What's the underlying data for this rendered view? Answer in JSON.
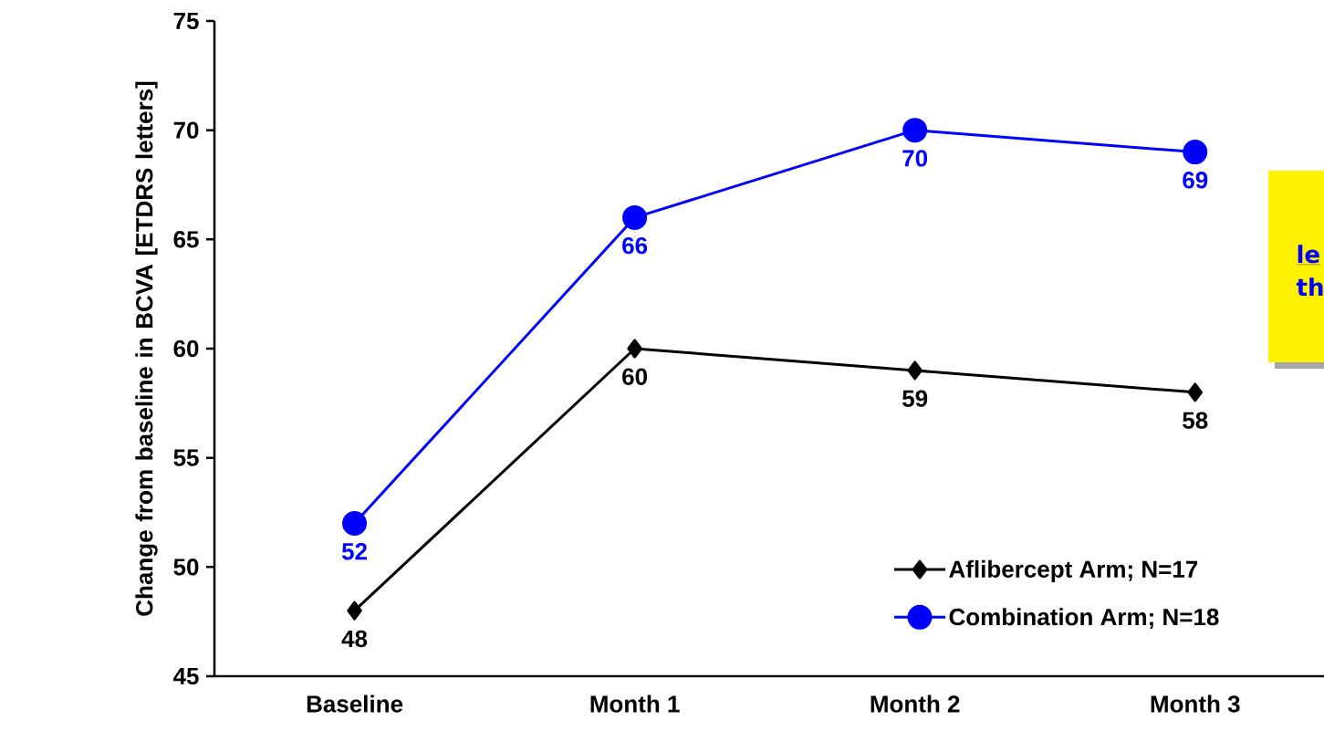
{
  "chart_data": {
    "type": "line",
    "ylabel": "Change from baseline in BCVA [ETDRS letters]",
    "categories": [
      "Baseline",
      "Month 1",
      "Month 2",
      "Month 3"
    ],
    "series": [
      {
        "name": "Aflibercept Arm; N=17",
        "color": "#000000",
        "marker": "diamond",
        "values": [
          48,
          60,
          59,
          58
        ]
      },
      {
        "name": "Combination Arm; N=18",
        "color": "#0000ff",
        "marker": "circle",
        "values": [
          52,
          66,
          70,
          69
        ]
      }
    ],
    "ylim": [
      45,
      75
    ],
    "yticks": [
      45,
      50,
      55,
      60,
      65,
      70,
      75
    ],
    "data_labels": true,
    "legend": "bottom right",
    "grid": false,
    "annotations": [
      "le",
      "th"
    ]
  }
}
